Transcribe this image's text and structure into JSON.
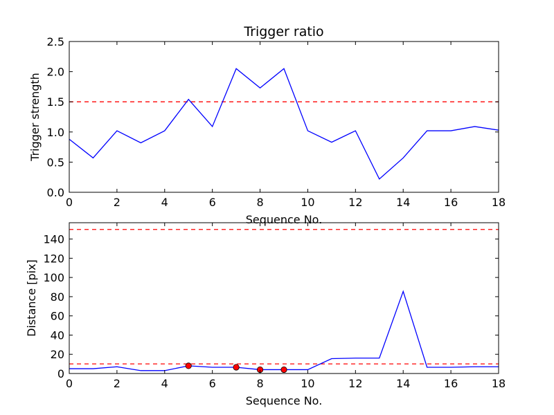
{
  "chart_data": [
    {
      "type": "line",
      "title": "Trigger ratio",
      "xlabel": "Sequence No.",
      "ylabel": "Trigger strength",
      "xlim": [
        0,
        18
      ],
      "ylim": [
        0,
        2.5
      ],
      "xticks": [
        0,
        2,
        4,
        6,
        8,
        10,
        12,
        14,
        16,
        18
      ],
      "yticks": [
        0.0,
        0.5,
        1.0,
        1.5,
        2.0,
        2.5
      ],
      "ytick_decimals": 1,
      "grid": false,
      "series": [
        {
          "color": "#0000ff",
          "style": "line",
          "x": [
            0,
            1,
            2,
            3,
            4,
            5,
            6,
            7,
            8,
            9,
            10,
            11,
            12,
            13,
            14,
            15,
            16,
            17,
            18
          ],
          "y": [
            0.88,
            0.57,
            1.02,
            0.82,
            1.02,
            1.54,
            1.09,
            2.05,
            1.73,
            2.05,
            1.02,
            0.83,
            1.02,
            0.22,
            0.57,
            1.02,
            1.02,
            1.09,
            1.03
          ]
        }
      ],
      "thresholds": [
        {
          "y": 1.5,
          "color": "#ff0000",
          "style": "dashed"
        }
      ]
    },
    {
      "type": "line",
      "title": "",
      "xlabel": "Sequence No.",
      "ylabel": "Distance [pix]",
      "xlim": [
        0,
        18
      ],
      "ylim": [
        0,
        157
      ],
      "xticks": [
        0,
        2,
        4,
        6,
        8,
        10,
        12,
        14,
        16,
        18
      ],
      "yticks": [
        0,
        20,
        40,
        60,
        80,
        100,
        120,
        140
      ],
      "ytick_decimals": 0,
      "grid": false,
      "series": [
        {
          "color": "#0000ff",
          "style": "line",
          "x": [
            0,
            1,
            2,
            3,
            4,
            5,
            6,
            7,
            8,
            9,
            10,
            11,
            12,
            13,
            14,
            15,
            16,
            17,
            18
          ],
          "y": [
            5,
            5,
            7,
            3,
            3,
            8,
            6.5,
            6.5,
            4,
            4,
            4,
            15.5,
            16,
            16,
            85.5,
            6.5,
            6.5,
            7,
            7
          ]
        },
        {
          "color": "#ff0000",
          "style": "markers",
          "x": [
            5,
            7,
            8,
            9
          ],
          "y": [
            8,
            6.5,
            4,
            4
          ]
        }
      ],
      "thresholds": [
        {
          "y": 150,
          "color": "#ff0000",
          "style": "dashed"
        },
        {
          "y": 10,
          "color": "#ff0000",
          "style": "dashed"
        }
      ]
    }
  ]
}
